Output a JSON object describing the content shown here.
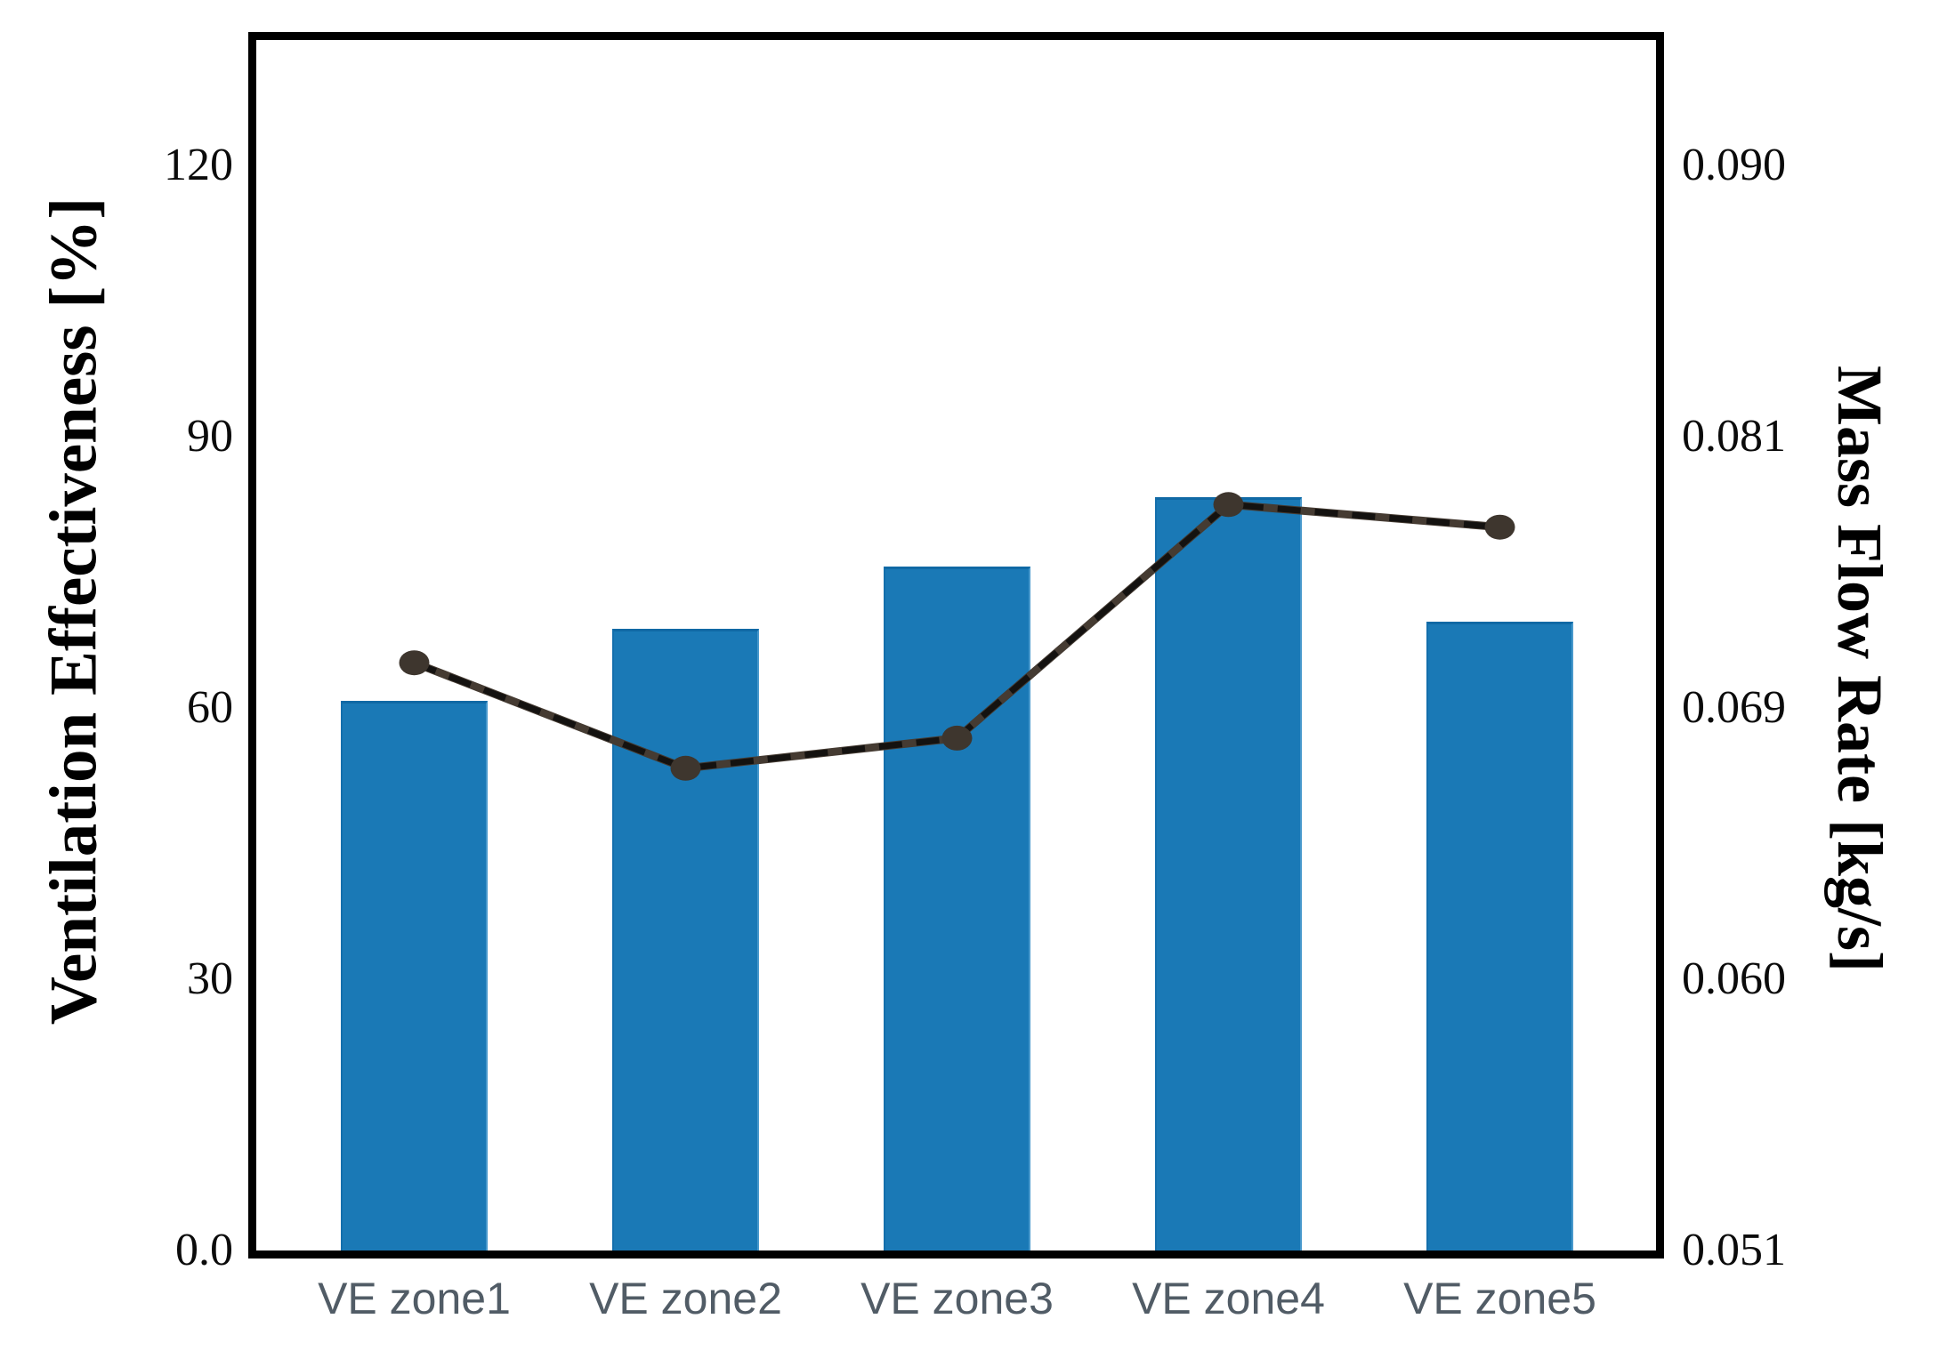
{
  "chart_data": {
    "type": "combo",
    "categories": [
      "VE zone1",
      "VE zone2",
      "VE zone3",
      "VE zone4",
      "VE zone5"
    ],
    "series": [
      {
        "name": "Ventilation Effectiveness",
        "type": "bar",
        "axis": "left",
        "unit": "%",
        "color": "#1a79b6",
        "values": [
          60.8,
          68.8,
          75.6,
          83.3,
          69.5
        ]
      },
      {
        "name": "Mass Flow Rate",
        "type": "line",
        "axis": "right",
        "unit": "kg/s",
        "color": "#453b32",
        "dash_color": "#141210",
        "marker_color": "#3e362e",
        "values": [
          0.071,
          0.067,
          0.068,
          0.078,
          0.077
        ]
      }
    ],
    "title": "",
    "left_axis": {
      "label": "Ventilation Effectiveness [%]",
      "ticks": [
        0,
        30,
        60,
        90,
        120
      ],
      "tick_labels": [
        "0.0",
        "30",
        "60",
        "90",
        "120"
      ],
      "range_top": 134
    },
    "right_axis": {
      "label": "Mass Flow Rate [kg/s]",
      "ticks": [
        0.051,
        0.06,
        0.069,
        0.081,
        0.09
      ],
      "tick_labels": [
        "0.051",
        "0.060",
        "0.069",
        "0.081",
        "0.090"
      ]
    },
    "grid": false,
    "legend": false,
    "frame_color": "#000000",
    "x_tick_color": "#515c66"
  }
}
